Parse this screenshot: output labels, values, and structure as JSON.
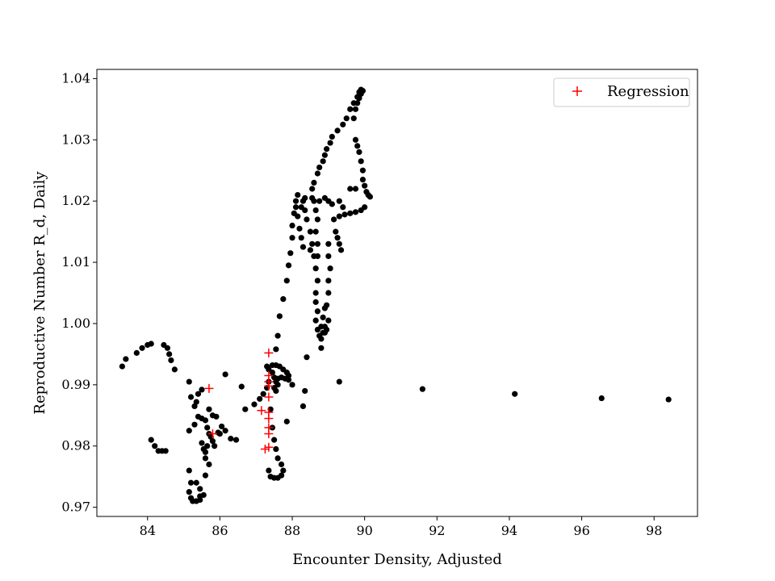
{
  "chart_data": {
    "type": "scatter",
    "title": "",
    "xlabel": "Encounter Density, Adjusted",
    "ylabel": "Reproductive Number R_d, Daily",
    "xlim": [
      82.6,
      99.2
    ],
    "ylim": [
      0.9685,
      1.0415
    ],
    "xticks": [
      84,
      86,
      88,
      90,
      92,
      94,
      96,
      98
    ],
    "yticks": [
      0.97,
      0.98,
      0.99,
      1.0,
      1.01,
      1.02,
      1.03,
      1.04
    ],
    "ytick_labels": [
      "0.97",
      "0.98",
      "0.99",
      "1.00",
      "1.01",
      "1.02",
      "1.03",
      "1.04"
    ],
    "grid": false,
    "legend_position": "top-right",
    "colors": {
      "observed": "#000000",
      "regression": "#ff0000"
    },
    "series": [
      {
        "name": "",
        "marker": "dot",
        "points": [
          [
            83.3,
            0.993
          ],
          [
            83.4,
            0.9942
          ],
          [
            83.7,
            0.9952
          ],
          [
            83.85,
            0.996
          ],
          [
            84.0,
            0.9965
          ],
          [
            84.1,
            0.9967
          ],
          [
            84.45,
            0.9965
          ],
          [
            84.55,
            0.996
          ],
          [
            84.6,
            0.995
          ],
          [
            84.65,
            0.994
          ],
          [
            84.75,
            0.9925
          ],
          [
            84.1,
            0.981
          ],
          [
            84.2,
            0.98
          ],
          [
            84.3,
            0.9792
          ],
          [
            84.4,
            0.9792
          ],
          [
            84.5,
            0.9792
          ],
          [
            85.15,
            0.9905
          ],
          [
            85.2,
            0.988
          ],
          [
            85.3,
            0.9865
          ],
          [
            85.35,
            0.9872
          ],
          [
            85.4,
            0.9885
          ],
          [
            85.5,
            0.9892
          ],
          [
            85.15,
            0.9825
          ],
          [
            85.3,
            0.9835
          ],
          [
            85.4,
            0.9848
          ],
          [
            85.5,
            0.9845
          ],
          [
            85.6,
            0.9842
          ],
          [
            85.65,
            0.983
          ],
          [
            85.5,
            0.9805
          ],
          [
            85.55,
            0.9795
          ],
          [
            85.6,
            0.978
          ],
          [
            85.6,
            0.979
          ],
          [
            85.65,
            0.98
          ],
          [
            85.7,
            0.982
          ],
          [
            85.75,
            0.9815
          ],
          [
            85.8,
            0.9808
          ],
          [
            85.85,
            0.98
          ],
          [
            85.7,
            0.986
          ],
          [
            85.8,
            0.985
          ],
          [
            85.9,
            0.9848
          ],
          [
            85.95,
            0.9822
          ],
          [
            86.0,
            0.982
          ],
          [
            86.05,
            0.9832
          ],
          [
            86.15,
            0.9825
          ],
          [
            86.3,
            0.9812
          ],
          [
            86.45,
            0.981
          ],
          [
            86.15,
            0.9917
          ],
          [
            86.6,
            0.9897
          ],
          [
            85.7,
            0.977
          ],
          [
            85.6,
            0.9752
          ],
          [
            85.15,
            0.976
          ],
          [
            85.2,
            0.974
          ],
          [
            85.35,
            0.974
          ],
          [
            85.45,
            0.973
          ],
          [
            85.45,
            0.9718
          ],
          [
            85.15,
            0.9725
          ],
          [
            85.2,
            0.9715
          ],
          [
            85.25,
            0.971
          ],
          [
            85.35,
            0.971
          ],
          [
            85.45,
            0.9712
          ],
          [
            85.55,
            0.972
          ],
          [
            86.7,
            0.986
          ],
          [
            86.95,
            0.9868
          ],
          [
            87.1,
            0.9877
          ],
          [
            87.2,
            0.9885
          ],
          [
            87.3,
            0.9895
          ],
          [
            87.35,
            0.9905
          ],
          [
            87.3,
            0.993
          ],
          [
            87.35,
            0.9925
          ],
          [
            87.45,
            0.992
          ],
          [
            87.5,
            0.9912
          ],
          [
            87.55,
            0.9905
          ],
          [
            87.6,
            0.99
          ],
          [
            87.45,
            0.9932
          ],
          [
            87.55,
            0.9932
          ],
          [
            87.65,
            0.993
          ],
          [
            87.75,
            0.9925
          ],
          [
            87.85,
            0.992
          ],
          [
            87.9,
            0.9908
          ],
          [
            87.6,
            0.991
          ],
          [
            87.7,
            0.9912
          ],
          [
            87.8,
            0.991
          ],
          [
            87.9,
            0.9915
          ],
          [
            87.5,
            0.9895
          ],
          [
            87.55,
            0.989
          ],
          [
            87.55,
            0.9958
          ],
          [
            87.6,
            0.998
          ],
          [
            87.65,
            1.0012
          ],
          [
            87.75,
            1.004
          ],
          [
            87.85,
            1.007
          ],
          [
            87.9,
            1.0095
          ],
          [
            87.95,
            1.0115
          ],
          [
            88.0,
            1.014
          ],
          [
            88.0,
            1.016
          ],
          [
            88.05,
            1.018
          ],
          [
            88.1,
            1.02
          ],
          [
            88.15,
            1.021
          ],
          [
            88.1,
            1.019
          ],
          [
            88.15,
            1.0175
          ],
          [
            88.2,
            1.0155
          ],
          [
            88.25,
            1.014
          ],
          [
            88.3,
            1.0125
          ],
          [
            88.25,
            1.019
          ],
          [
            88.3,
            1.02
          ],
          [
            88.35,
            1.0205
          ],
          [
            88.35,
            1.0185
          ],
          [
            88.4,
            1.017
          ],
          [
            88.5,
            1.015
          ],
          [
            88.55,
            1.013
          ],
          [
            88.5,
            1.012
          ],
          [
            88.6,
            1.011
          ],
          [
            88.6,
            1.02
          ],
          [
            88.65,
            1.0185
          ],
          [
            88.7,
            1.017
          ],
          [
            88.65,
            1.015
          ],
          [
            88.7,
            1.013
          ],
          [
            88.7,
            1.011
          ],
          [
            88.65,
            1.009
          ],
          [
            88.7,
            1.007
          ],
          [
            88.65,
            1.005
          ],
          [
            88.65,
            1.0035
          ],
          [
            88.7,
            1.002
          ],
          [
            88.65,
            1.0005
          ],
          [
            88.7,
            0.999
          ],
          [
            88.75,
            0.998
          ],
          [
            88.8,
            0.9975
          ],
          [
            88.85,
            0.9985
          ],
          [
            88.8,
            0.9995
          ],
          [
            88.55,
            1.022
          ],
          [
            88.6,
            1.023
          ],
          [
            88.7,
            1.0245
          ],
          [
            88.75,
            1.0255
          ],
          [
            88.85,
            1.0265
          ],
          [
            88.9,
            1.0275
          ],
          [
            88.95,
            1.0285
          ],
          [
            89.05,
            1.0295
          ],
          [
            89.1,
            1.0305
          ],
          [
            89.25,
            1.0315
          ],
          [
            89.4,
            1.0325
          ],
          [
            89.5,
            1.0335
          ],
          [
            89.6,
            1.035
          ],
          [
            89.7,
            1.036
          ],
          [
            89.8,
            1.037
          ],
          [
            89.85,
            1.0378
          ],
          [
            89.9,
            1.0382
          ],
          [
            89.95,
            1.038
          ],
          [
            89.9,
            1.0375
          ],
          [
            89.85,
            1.0368
          ],
          [
            89.8,
            1.036
          ],
          [
            89.75,
            1.035
          ],
          [
            89.7,
            1.0335
          ],
          [
            89.75,
            1.03
          ],
          [
            89.8,
            1.029
          ],
          [
            89.85,
            1.028
          ],
          [
            89.9,
            1.0265
          ],
          [
            89.95,
            1.025
          ],
          [
            89.95,
            1.0235
          ],
          [
            90.0,
            1.0225
          ],
          [
            90.05,
            1.0215
          ],
          [
            90.1,
            1.021
          ],
          [
            90.15,
            1.0207
          ],
          [
            89.75,
            1.022
          ],
          [
            89.6,
            1.022
          ],
          [
            88.55,
            1.0205
          ],
          [
            88.75,
            1.02
          ],
          [
            88.9,
            1.0205
          ],
          [
            89.0,
            1.02
          ],
          [
            89.1,
            1.0195
          ],
          [
            89.15,
            1.017
          ],
          [
            89.2,
            1.015
          ],
          [
            89.25,
            1.014
          ],
          [
            89.3,
            1.013
          ],
          [
            89.35,
            1.012
          ],
          [
            89.3,
            1.0175
          ],
          [
            89.45,
            1.0178
          ],
          [
            89.6,
            1.018
          ],
          [
            89.75,
            1.0182
          ],
          [
            89.9,
            1.0185
          ],
          [
            90.0,
            1.019
          ],
          [
            89.0,
            1.013
          ],
          [
            89.0,
            1.011
          ],
          [
            89.05,
            1.009
          ],
          [
            89.0,
            1.007
          ],
          [
            89.0,
            1.005
          ],
          [
            88.95,
            1.003
          ],
          [
            89.0,
            1.0005
          ],
          [
            88.95,
            0.999
          ],
          [
            88.9,
            0.9985
          ],
          [
            89.3,
            1.02
          ],
          [
            89.4,
            1.019
          ],
          [
            88.4,
            0.9945
          ],
          [
            88.8,
            0.996
          ],
          [
            88.9,
            0.9995
          ],
          [
            88.85,
            1.001
          ],
          [
            88.9,
            1.0025
          ],
          [
            88.0,
            0.99
          ],
          [
            88.3,
            0.9865
          ],
          [
            88.35,
            0.989
          ],
          [
            87.85,
            0.984
          ],
          [
            87.35,
            0.976
          ],
          [
            87.4,
            0.975
          ],
          [
            87.5,
            0.9748
          ],
          [
            87.6,
            0.9748
          ],
          [
            87.7,
            0.9752
          ],
          [
            87.75,
            0.976
          ],
          [
            87.7,
            0.977
          ],
          [
            87.6,
            0.978
          ],
          [
            87.55,
            0.9795
          ],
          [
            87.5,
            0.981
          ],
          [
            87.45,
            0.983
          ],
          [
            87.4,
            0.986
          ],
          [
            89.3,
            0.9905
          ],
          [
            91.6,
            0.9893
          ],
          [
            94.15,
            0.9885
          ],
          [
            96.55,
            0.9878
          ],
          [
            98.4,
            0.9876
          ]
        ]
      },
      {
        "name": "Regression",
        "marker": "plus",
        "points": [
          [
            85.7,
            0.9894
          ],
          [
            85.8,
            0.982
          ],
          [
            87.15,
            0.9858
          ],
          [
            87.35,
            0.9952
          ],
          [
            87.35,
            0.9915
          ],
          [
            87.35,
            0.9905
          ],
          [
            87.35,
            0.9898
          ],
          [
            87.35,
            0.988
          ],
          [
            87.35,
            0.9855
          ],
          [
            87.35,
            0.9845
          ],
          [
            87.35,
            0.983
          ],
          [
            87.35,
            0.982
          ],
          [
            87.35,
            0.9798
          ],
          [
            87.25,
            0.9795
          ]
        ]
      }
    ]
  }
}
